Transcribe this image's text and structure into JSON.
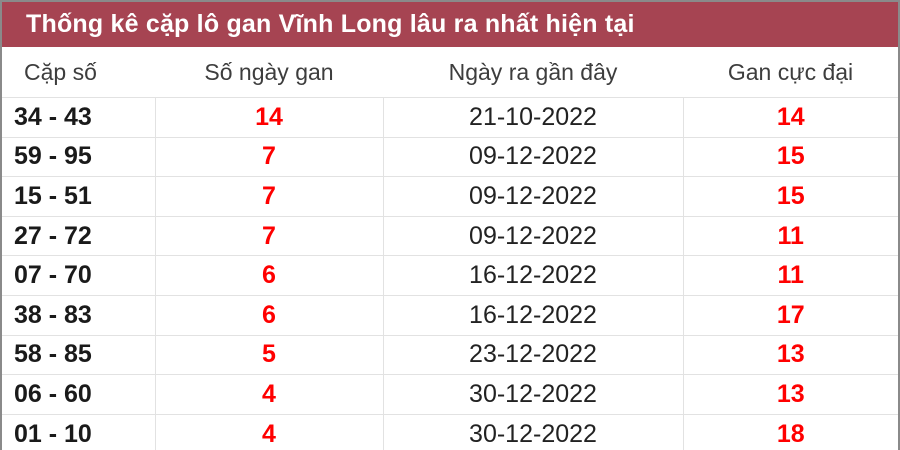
{
  "title": "Thống kê cặp lô gan Vĩnh Long lâu ra nhất hiện tại",
  "columns": [
    "Cặp số",
    "Số ngày gan",
    "Ngày ra gần đây",
    "Gan cực đại"
  ],
  "rows": [
    {
      "pair": "34 - 43",
      "days": "14",
      "last": "21-10-2022",
      "max": "14"
    },
    {
      "pair": "59 - 95",
      "days": "7",
      "last": "09-12-2022",
      "max": "15"
    },
    {
      "pair": "15 - 51",
      "days": "7",
      "last": "09-12-2022",
      "max": "15"
    },
    {
      "pair": "27 - 72",
      "days": "7",
      "last": "09-12-2022",
      "max": "11"
    },
    {
      "pair": "07 - 70",
      "days": "6",
      "last": "16-12-2022",
      "max": "11"
    },
    {
      "pair": "38 - 83",
      "days": "6",
      "last": "16-12-2022",
      "max": "17"
    },
    {
      "pair": "58 - 85",
      "days": "5",
      "last": "23-12-2022",
      "max": "13"
    },
    {
      "pair": "06 - 60",
      "days": "4",
      "last": "30-12-2022",
      "max": "13"
    },
    {
      "pair": "01 - 10",
      "days": "4",
      "last": "30-12-2022",
      "max": "18"
    }
  ],
  "colors": {
    "title_bg": "#a64452",
    "highlight": "#ff0000"
  }
}
